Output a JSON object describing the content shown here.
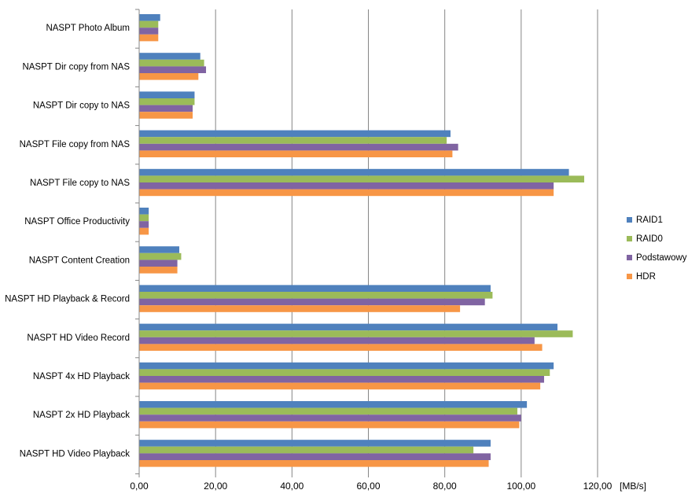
{
  "chart_data": {
    "type": "bar",
    "orientation": "horizontal",
    "categories": [
      "NASPT Photo Album",
      "NASPT Dir copy from NAS",
      "NASPT Dir copy to NAS",
      "NASPT File copy from NAS",
      "NASPT File copy to NAS",
      "NASPT Office Productivity",
      "NASPT Content Creation",
      "NASPT HD Playback & Record",
      "NASPT HD Video Record",
      "NASPT 4x HD Playback",
      "NASPT 2x HD Playback",
      "NASPT HD Video Playback"
    ],
    "series": [
      {
        "name": "RAID1",
        "color": "#4F81BD",
        "values": [
          5.5,
          16.0,
          14.5,
          81.5,
          112.5,
          2.5,
          10.5,
          92.0,
          109.5,
          108.5,
          101.5,
          92.0
        ]
      },
      {
        "name": "RAID0",
        "color": "#9BBB59",
        "values": [
          5.0,
          17.0,
          14.5,
          80.5,
          116.5,
          2.5,
          11.0,
          92.5,
          113.5,
          107.5,
          99.0,
          87.5
        ]
      },
      {
        "name": "Podstawowy",
        "color": "#8064A2",
        "values": [
          5.0,
          17.5,
          14.0,
          83.5,
          108.5,
          2.5,
          10.0,
          90.5,
          103.5,
          106.0,
          100.0,
          92.0
        ]
      },
      {
        "name": "HDR",
        "color": "#F79646",
        "values": [
          5.0,
          15.5,
          14.0,
          82.0,
          108.5,
          2.5,
          10.0,
          84.0,
          105.5,
          105.0,
          99.5,
          91.5
        ]
      }
    ],
    "xlim": [
      0,
      120
    ],
    "x_ticks": [
      "0,00",
      "20,00",
      "40,00",
      "60,00",
      "80,00",
      "100,00",
      "120,00"
    ],
    "xlabel": "[MB/s]",
    "grid": "vertical",
    "legend_position": "right"
  }
}
